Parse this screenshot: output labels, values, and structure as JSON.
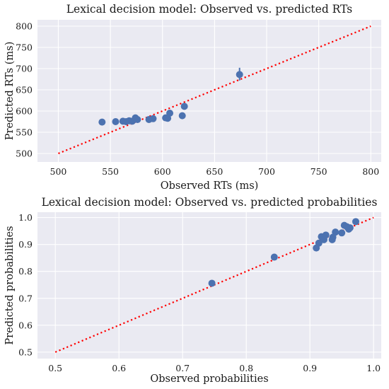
{
  "chart_data": [
    {
      "type": "scatter",
      "title": "Lexical decision model: Observed vs. predicted RTs",
      "xlabel": "Observed RTs (ms)",
      "ylabel": "Predicted RTs (ms)",
      "xlim": [
        480,
        810
      ],
      "ylim": [
        480,
        815
      ],
      "xticks": [
        500,
        550,
        600,
        650,
        700,
        750,
        800
      ],
      "yticks": [
        500,
        550,
        600,
        650,
        700,
        750,
        800
      ],
      "grid": true,
      "reference_line": {
        "from": [
          500,
          500
        ],
        "to": [
          800,
          800
        ],
        "style": "dotted",
        "color": "#ff0000"
      },
      "point_color": "#4c72b0",
      "points": [
        {
          "x": 542,
          "y": 574
        },
        {
          "x": 555,
          "y": 575
        },
        {
          "x": 562,
          "y": 576
        },
        {
          "x": 565,
          "y": 575
        },
        {
          "x": 568,
          "y": 577
        },
        {
          "x": 571,
          "y": 576
        },
        {
          "x": 574,
          "y": 584
        },
        {
          "x": 576,
          "y": 580
        },
        {
          "x": 587,
          "y": 580
        },
        {
          "x": 591,
          "y": 582
        },
        {
          "x": 603,
          "y": 584
        },
        {
          "x": 605,
          "y": 583
        },
        {
          "x": 607,
          "y": 595
        },
        {
          "x": 619,
          "y": 589
        },
        {
          "x": 621,
          "y": 611
        },
        {
          "x": 674,
          "y": 686,
          "err_low": 672,
          "err_high": 702
        }
      ]
    },
    {
      "type": "scatter",
      "title": "Lexical decision model: Observed vs. predicted probabilities",
      "xlabel": "Observed probabilities",
      "ylabel": "Predicted probabilities",
      "xlim": [
        0.472,
        1.012
      ],
      "ylim": [
        0.476,
        1.02
      ],
      "xticks": [
        "0.5",
        "0.6",
        "0.7",
        "0.8",
        "0.9",
        "1.0"
      ],
      "yticks": [
        "0.5",
        "0.6",
        "0.7",
        "0.8",
        "0.9",
        "1.0"
      ],
      "grid": true,
      "reference_line": {
        "from": [
          0.5,
          0.5
        ],
        "to": [
          1.0,
          1.0
        ],
        "style": "dotted",
        "color": "#ff0000"
      },
      "point_color": "#4c72b0",
      "points": [
        {
          "x": 0.746,
          "y": 0.756,
          "err_low": 0.745,
          "err_high": 0.767
        },
        {
          "x": 0.844,
          "y": 0.853
        },
        {
          "x": 0.91,
          "y": 0.887
        },
        {
          "x": 0.914,
          "y": 0.905
        },
        {
          "x": 0.918,
          "y": 0.929
        },
        {
          "x": 0.922,
          "y": 0.918
        },
        {
          "x": 0.925,
          "y": 0.935
        },
        {
          "x": 0.935,
          "y": 0.918
        },
        {
          "x": 0.936,
          "y": 0.927
        },
        {
          "x": 0.94,
          "y": 0.946
        },
        {
          "x": 0.95,
          "y": 0.943
        },
        {
          "x": 0.954,
          "y": 0.971
        },
        {
          "x": 0.958,
          "y": 0.966
        },
        {
          "x": 0.961,
          "y": 0.957
        },
        {
          "x": 0.963,
          "y": 0.962
        },
        {
          "x": 0.972,
          "y": 0.985
        }
      ]
    }
  ]
}
